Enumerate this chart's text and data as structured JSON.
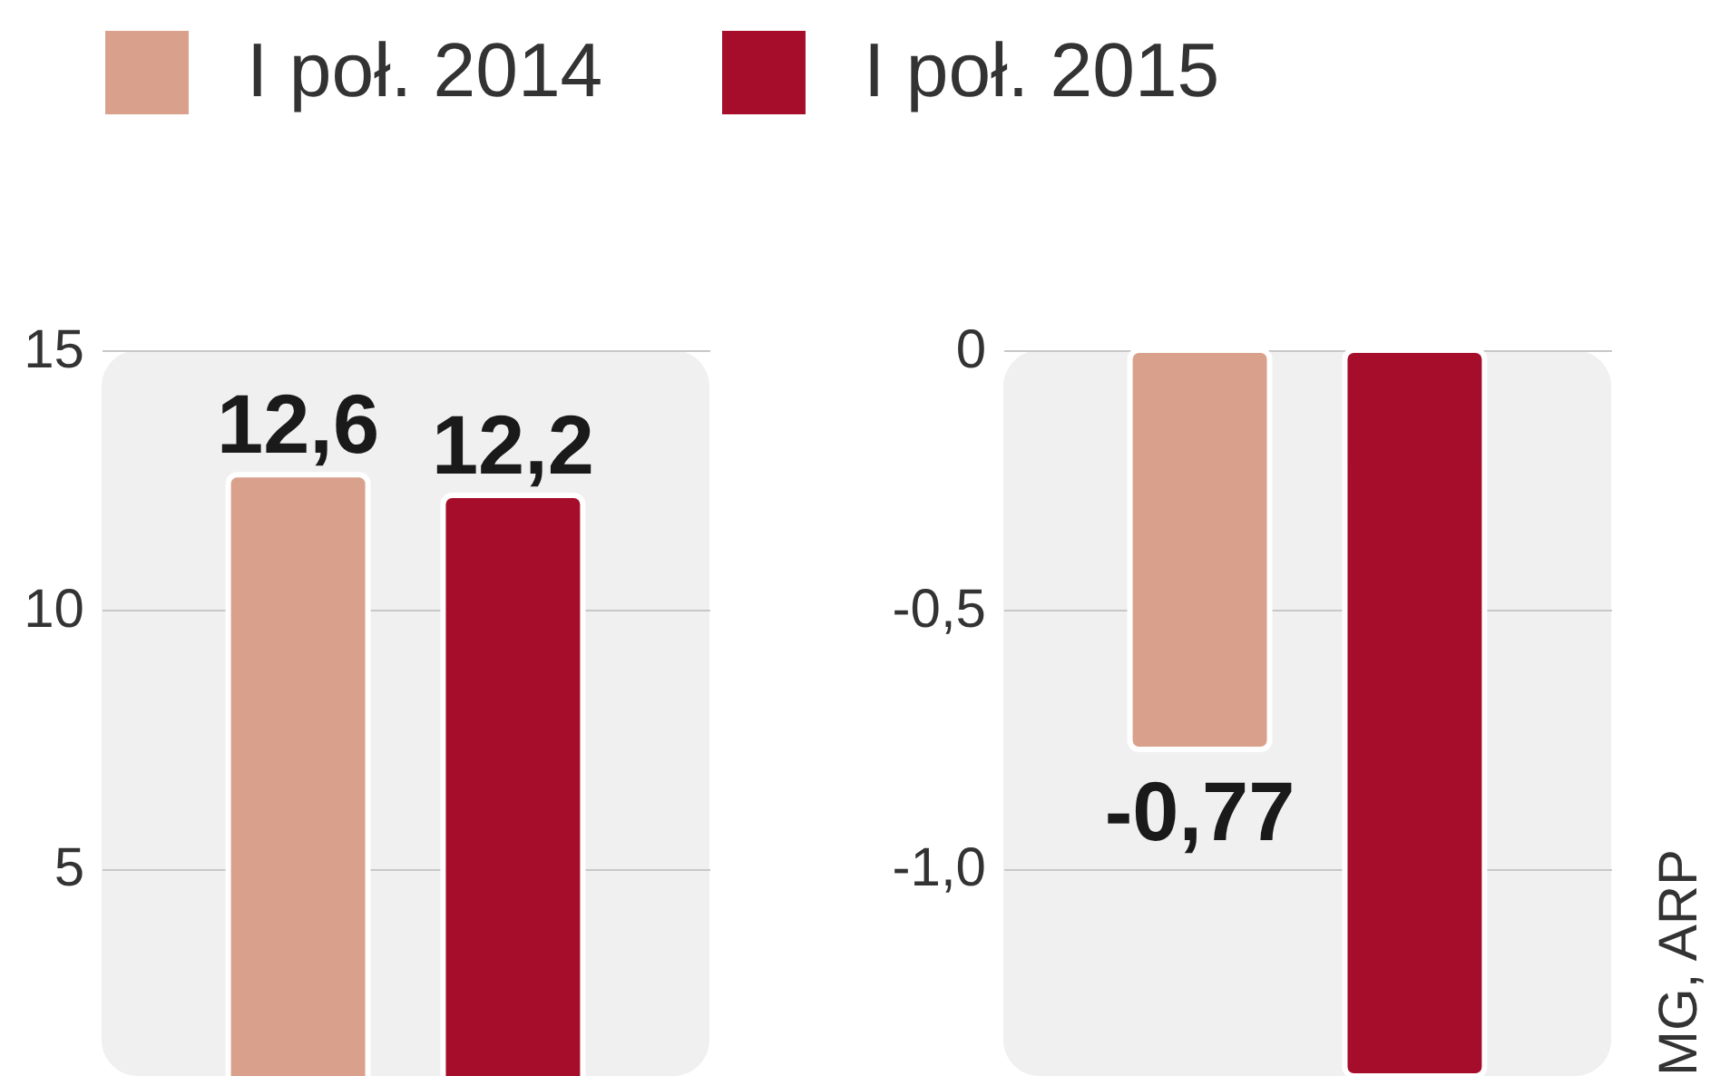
{
  "chart_data": [
    {
      "type": "bar",
      "categories": [
        null
      ],
      "series": [
        {
          "name": "I poł. 2014",
          "color": "#d9a08c",
          "values": [
            12.6
          ]
        },
        {
          "name": "I poł. 2015",
          "color": "#a50d2a",
          "values": [
            12.2
          ]
        }
      ],
      "value_labels": [
        [
          "12,6"
        ],
        [
          "12,2"
        ]
      ],
      "ylim": [
        1,
        15
      ],
      "yticks": [
        5,
        10,
        15
      ],
      "grid": "y",
      "legend": "top"
    },
    {
      "type": "bar",
      "categories": [
        null
      ],
      "series": [
        {
          "name": "I poł. 2014",
          "color": "#d9a08c",
          "values": [
            -0.77
          ]
        },
        {
          "name": "I poł. 2015",
          "color": "#a50d2a",
          "values": [
            -1.4
          ]
        }
      ],
      "value_labels": [
        [
          "-0,77"
        ],
        [
          null
        ]
      ],
      "ylim": [
        -1.4,
        0
      ],
      "yticks": [
        0,
        {
          "value": -0.5,
          "label": "-0,5"
        },
        {
          "value": -1.0,
          "label": "-1,0"
        }
      ],
      "grid": "y",
      "annotations": [
        "MG, ARP"
      ]
    }
  ]
}
